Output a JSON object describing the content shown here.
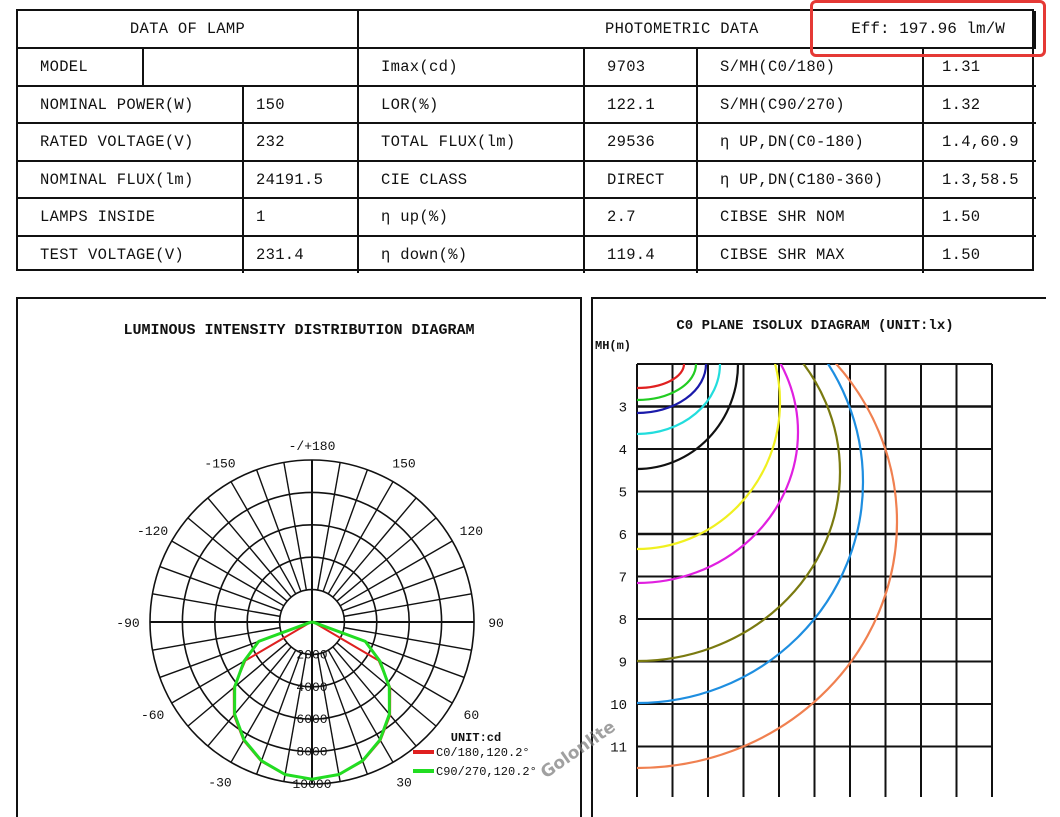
{
  "table": {
    "left_header": "DATA OF LAMP",
    "right_header": "PHOTOMETRIC DATA",
    "efficiency": "Eff: 197.96 lm/W",
    "highlight_color": "#e53935",
    "rows": [
      [
        "MODEL",
        "",
        "Imax(cd)",
        "9703",
        "S/MH(C0/180)",
        "1.31"
      ],
      [
        "NOMINAL POWER(W)",
        "150",
        "LOR(%)",
        "122.1",
        "S/MH(C90/270)",
        "1.32"
      ],
      [
        "RATED VOLTAGE(V)",
        "232",
        "TOTAL FLUX(lm)",
        "29536",
        "η UP,DN(C0-180)",
        "1.4,60.9"
      ],
      [
        "NOMINAL FLUX(lm)",
        "24191.5",
        "CIE CLASS",
        "DIRECT",
        "η UP,DN(C180-360)",
        "1.3,58.5"
      ],
      [
        "LAMPS INSIDE",
        "1",
        "η up(%)",
        "2.7",
        "CIBSE SHR NOM",
        "1.50"
      ],
      [
        "TEST VOLTAGE(V)",
        "231.4",
        "η down(%)",
        "119.4",
        "CIBSE SHR MAX",
        "1.50"
      ]
    ]
  },
  "watermark": "Golonlite",
  "chart_data": [
    {
      "type": "polar",
      "title": "LUMINOUS INTENSITY DISTRIBUTION DIAGRAM",
      "unit_label": "UNIT:cd",
      "radial_ticks": [
        "2000",
        "4000",
        "6000",
        "8000",
        "10000"
      ],
      "rmax": 10000,
      "angle_labels": {
        "180": "-/+180",
        "150": "150",
        "-150": "-150",
        "120": "120",
        "-120": "-120",
        "90": "90",
        "-90": "-90",
        "60": "60",
        "-60": "-60",
        "30": "30",
        "-30": "-30"
      },
      "angles": [
        0,
        10,
        20,
        30,
        40,
        50,
        60,
        70,
        80,
        90
      ],
      "series": [
        {
          "name": "C0/180,120.2°",
          "color": "#e02020",
          "values": [
            9703,
            9580,
            9160,
            8450,
            7500,
            6300,
            4750,
            200,
            0,
            0
          ]
        },
        {
          "name": "C90/270,120.2°",
          "color": "#22dd22",
          "values": [
            9703,
            9560,
            9120,
            8400,
            7430,
            6230,
            4850,
            3500,
            100,
            0
          ]
        }
      ]
    },
    {
      "type": "isolux",
      "title": "C0 PLANE ISOLUX DIAGRAM (UNIT:lx)",
      "ylabel": "MH(m)",
      "y_ticks": [
        "3",
        "4",
        "5",
        "6",
        "7",
        "8",
        "9",
        "10",
        "11"
      ],
      "curve_colors": [
        "#e02020",
        "#22cc22",
        "#1a1aaa",
        "#22dddd",
        "#111111",
        "#f0f020",
        "#e020e0",
        "#7a7a10",
        "#1e8ee0",
        "#f08050"
      ]
    }
  ]
}
